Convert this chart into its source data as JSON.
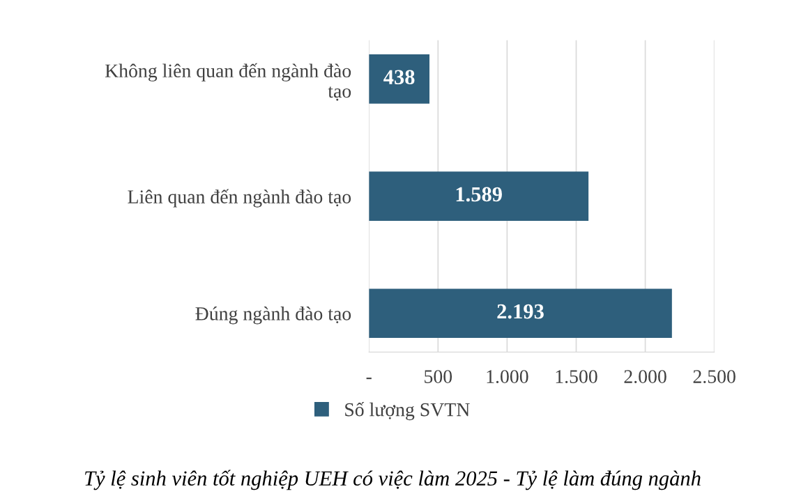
{
  "chart_data": {
    "type": "bar",
    "orientation": "horizontal",
    "categories": [
      "Không liên quan đến ngành đào tạo",
      "Liên quan đến ngành đào tạo",
      "Đúng ngành đào tạo"
    ],
    "series": [
      {
        "name": "Số lượng SVTN",
        "color": "#2e5f7c",
        "values": [
          438,
          1589,
          2193
        ],
        "value_labels": [
          "438",
          "1.589",
          "2.193"
        ]
      }
    ],
    "xlim": [
      0,
      2500
    ],
    "xticks": [
      {
        "value": 0,
        "label": "-"
      },
      500,
      {
        "value": 1000,
        "label": "1.000"
      },
      {
        "value": 1500,
        "label": "1.500"
      },
      {
        "value": 2000,
        "label": "2.000"
      },
      {
        "value": 2500,
        "label": "2.500"
      }
    ],
    "grid": "x",
    "legend": "bottom",
    "annotations": [
      "Tỷ lệ sinh viên tốt nghiệp UEH có việc làm 2025 - Tỷ lệ làm đúng ngành"
    ]
  }
}
